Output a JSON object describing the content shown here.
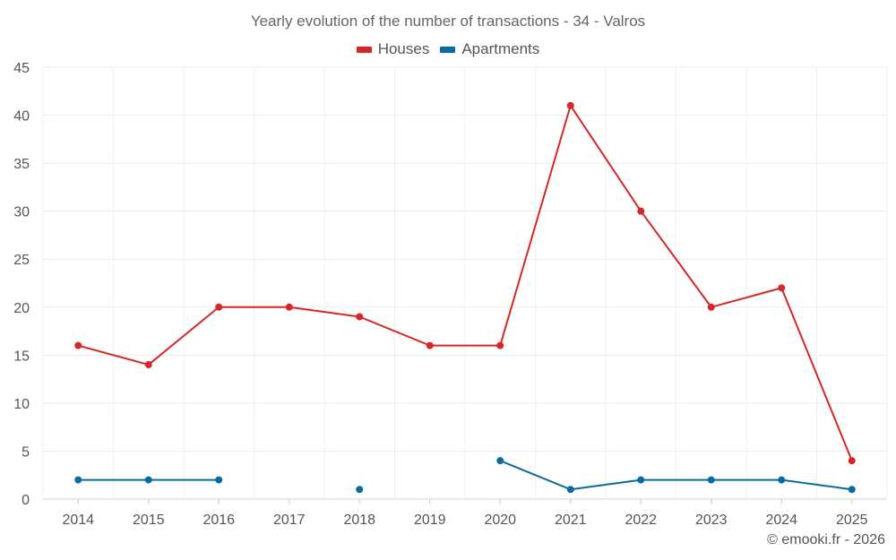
{
  "chart_data": {
    "type": "line",
    "title": "Yearly evolution of the number of transactions - 34 - Valros",
    "categories": [
      "2014",
      "2015",
      "2016",
      "2017",
      "2018",
      "2019",
      "2020",
      "2021",
      "2022",
      "2023",
      "2024",
      "2025"
    ],
    "series": [
      {
        "name": "Houses",
        "color": "#d62728",
        "values": [
          16,
          14,
          20,
          20,
          19,
          16,
          16,
          41,
          30,
          20,
          22,
          4
        ]
      },
      {
        "name": "Apartments",
        "color": "#0b6b9e",
        "values": [
          2,
          2,
          2,
          null,
          1,
          null,
          4,
          1,
          2,
          2,
          2,
          1
        ]
      }
    ],
    "ylim": [
      0,
      45
    ],
    "yticks": [
      0,
      5,
      10,
      15,
      20,
      25,
      30,
      35,
      40,
      45
    ],
    "xlabel": "",
    "ylabel": "",
    "grid": true,
    "legend": "top-center"
  },
  "credit": "© emooki.fr - 2026"
}
